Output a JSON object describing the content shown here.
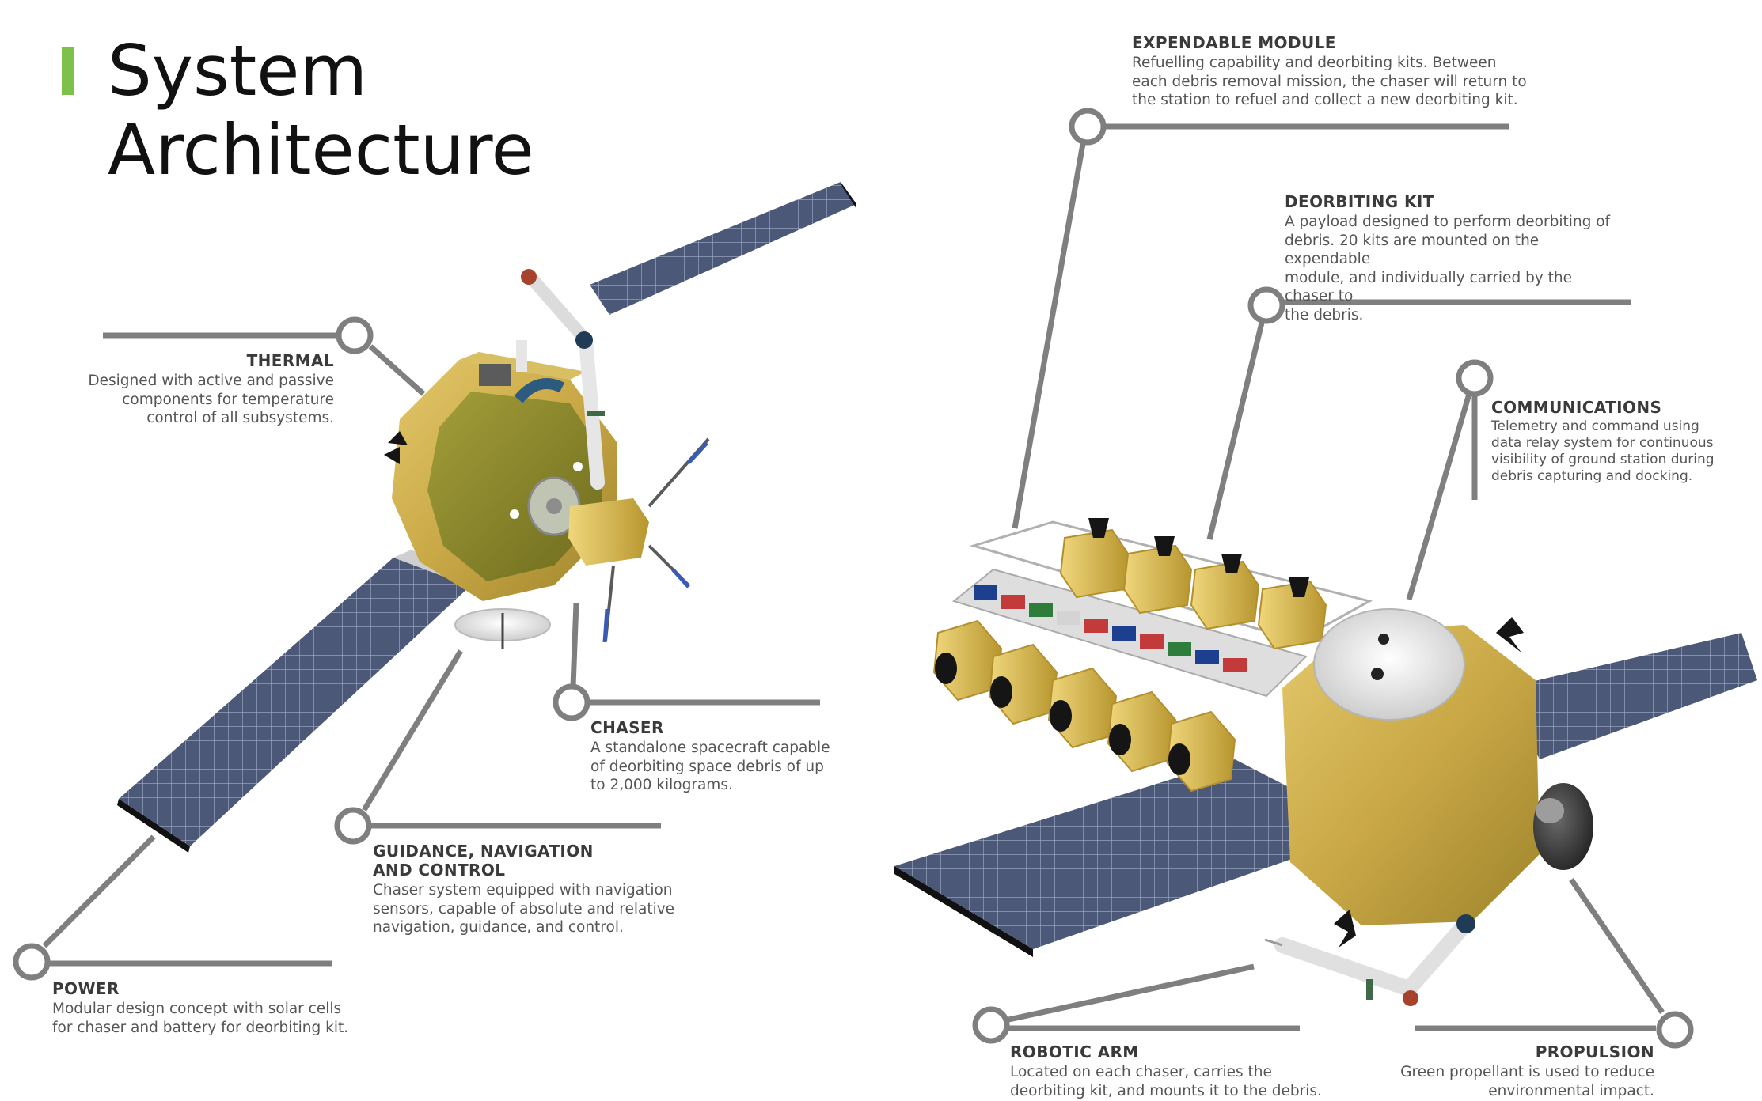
{
  "header": {
    "title_line1": "System",
    "title_line2": "Architecture",
    "accent_color": "#7dc04a"
  },
  "callouts": {
    "thermal": {
      "title": "THERMAL",
      "lines": [
        "Designed with active and passive",
        "components for temperature",
        "control of all subsystems."
      ]
    },
    "chaser": {
      "title": "CHASER",
      "lines": [
        "A standalone spacecraft capable",
        "of deorbiting space debris of up",
        "to 2,000 kilograms."
      ]
    },
    "gnc": {
      "title_lines": [
        "GUIDANCE, NAVIGATION",
        "AND CONTROL"
      ],
      "lines": [
        "Chaser system equipped with navigation",
        "sensors, capable of absolute and relative",
        "navigation, guidance, and control."
      ]
    },
    "power": {
      "title": "POWER",
      "lines": [
        "Modular design concept with solar cells",
        "for chaser and battery for deorbiting kit."
      ]
    },
    "expendable_module": {
      "title": "EXPENDABLE MODULE",
      "lines": [
        "Refuelling capability and deorbiting kits. Between",
        "each debris removal mission, the chaser will return to",
        "the station to refuel and collect a new deorbiting kit."
      ]
    },
    "deorbiting_kit": {
      "title": "DEORBITING KIT",
      "lines": [
        "A payload designed to perform deorbiting of",
        "debris. 20 kits are mounted on the expendable",
        "module, and individually carried by the chaser to",
        "the debris."
      ]
    },
    "communications": {
      "title": "COMMUNICATIONS",
      "lines": [
        "Telemetry and command using",
        "data relay system for continuous",
        "visibility of ground station during",
        "debris capturing and docking."
      ]
    },
    "robotic_arm": {
      "title": "ROBOTIC ARM",
      "lines": [
        "Located on each chaser, carries the",
        "deorbiting kit, and mounts it to the debris."
      ]
    },
    "propulsion": {
      "title": "PROPULSION",
      "lines": [
        "Green propellant is used to reduce",
        "environmental impact."
      ]
    }
  },
  "colors": {
    "leader": "#7f7f7f",
    "panel": "#4a5674",
    "panel_grid": "#9aa6c0",
    "gold": "#cdb04a",
    "gold_dark": "#a58c2e",
    "olive": "#8d8a2c"
  }
}
